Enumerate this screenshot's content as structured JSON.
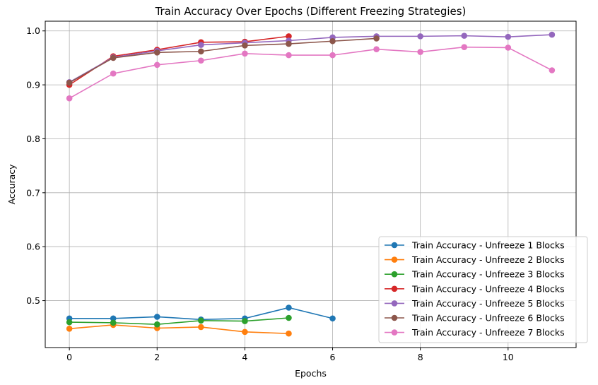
{
  "chart_data": {
    "type": "line",
    "title": "Train Accuracy Over Epochs (Different Freezing Strategies)",
    "xlabel": "Epochs",
    "ylabel": "Accuracy",
    "xlim": [
      -0.55,
      11.55
    ],
    "ylim": [
      0.413,
      1.018
    ],
    "xticks": [
      0,
      2,
      4,
      6,
      8,
      10
    ],
    "yticks": [
      0.5,
      0.6,
      0.7,
      0.8,
      0.9,
      1.0
    ],
    "xtick_labels": [
      "0",
      "2",
      "4",
      "6",
      "8",
      "10"
    ],
    "ytick_labels": [
      "0.5",
      "0.6",
      "0.7",
      "0.8",
      "0.9",
      "1.0"
    ],
    "grid": true,
    "legend_position": "lower-right",
    "series": [
      {
        "name": "Train Accuracy - Unfreeze 1 Blocks",
        "color": "#1f77b4",
        "x": [
          0,
          1,
          2,
          3,
          4,
          5,
          6
        ],
        "values": [
          0.467,
          0.467,
          0.47,
          0.465,
          0.467,
          0.487,
          0.467
        ]
      },
      {
        "name": "Train Accuracy - Unfreeze 2 Blocks",
        "color": "#ff7f0e",
        "x": [
          0,
          1,
          2,
          3,
          4,
          5
        ],
        "values": [
          0.448,
          0.455,
          0.449,
          0.451,
          0.442,
          0.439
        ]
      },
      {
        "name": "Train Accuracy - Unfreeze 3 Blocks",
        "color": "#2ca02c",
        "x": [
          0,
          1,
          2,
          3,
          4,
          5
        ],
        "values": [
          0.46,
          0.459,
          0.456,
          0.463,
          0.462,
          0.468
        ]
      },
      {
        "name": "Train Accuracy - Unfreeze 4 Blocks",
        "color": "#d62728",
        "x": [
          0,
          1,
          2,
          3,
          4,
          5
        ],
        "values": [
          0.9,
          0.953,
          0.965,
          0.979,
          0.98,
          0.99
        ]
      },
      {
        "name": "Train Accuracy - Unfreeze 5 Blocks",
        "color": "#9467bd",
        "x": [
          0,
          1,
          2,
          3,
          4,
          5,
          6,
          7,
          8,
          9,
          10,
          11
        ],
        "values": [
          0.905,
          0.951,
          0.963,
          0.974,
          0.978,
          0.982,
          0.988,
          0.99,
          0.99,
          0.991,
          0.989,
          0.993
        ]
      },
      {
        "name": "Train Accuracy - Unfreeze 6 Blocks",
        "color": "#8c564b",
        "x": [
          0,
          1,
          2,
          3,
          4,
          5,
          6,
          7
        ],
        "values": [
          0.904,
          0.95,
          0.96,
          0.962,
          0.973,
          0.976,
          0.981,
          0.986
        ]
      },
      {
        "name": "Train Accuracy - Unfreeze 7 Blocks",
        "color": "#e377c2",
        "x": [
          0,
          1,
          2,
          3,
          4,
          5,
          6,
          7,
          8,
          9,
          10,
          11
        ],
        "values": [
          0.875,
          0.921,
          0.937,
          0.945,
          0.958,
          0.955,
          0.955,
          0.966,
          0.961,
          0.97,
          0.969,
          0.927
        ]
      }
    ]
  }
}
